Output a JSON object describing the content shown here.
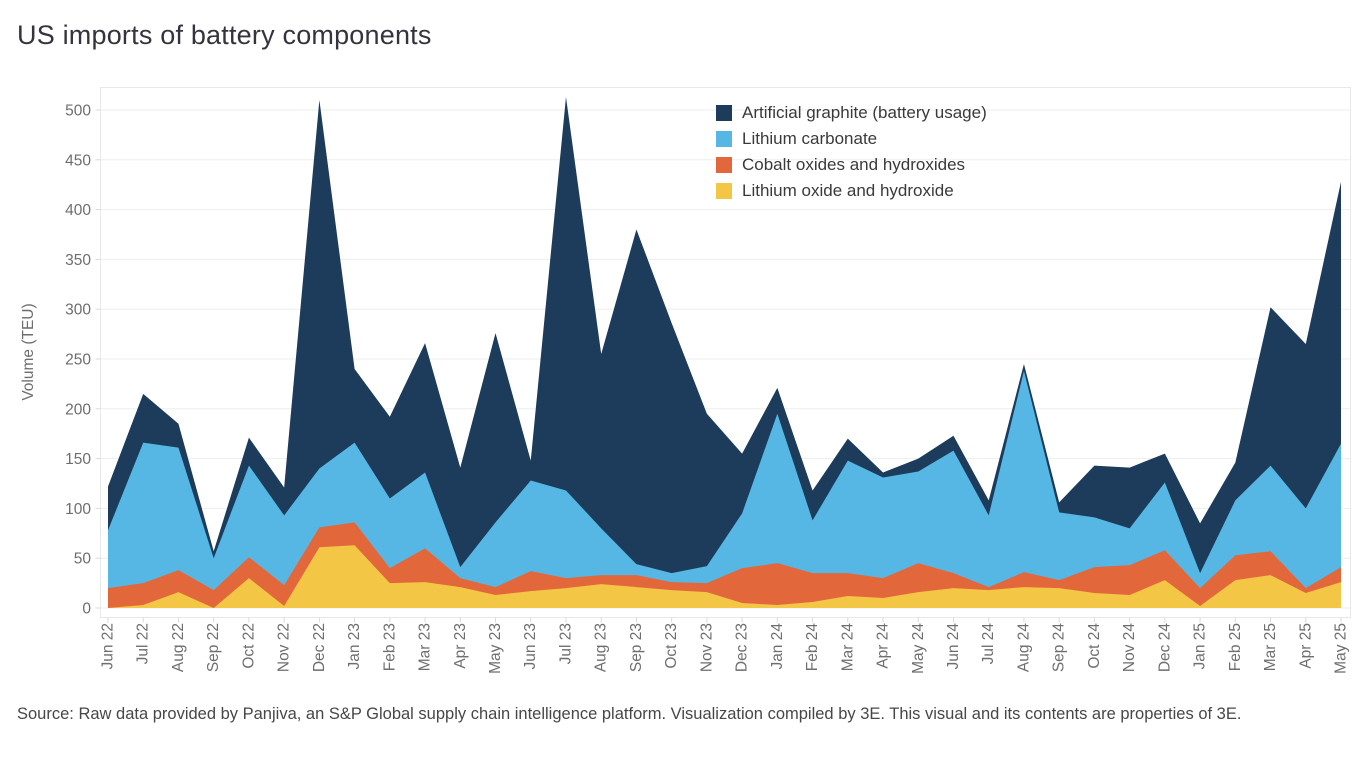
{
  "title": "US imports of battery components",
  "source_text": "Source: Raw data provided by Panjiva, an S&P Global supply chain intelligence platform. Visualization compiled by 3E. This visual and its contents are properties of 3E.",
  "colors": {
    "background": "#ffffff",
    "grid": "#ededed",
    "frame": "#e8e8e8",
    "tick": "#d9d9d9",
    "axis_text": "#6e6e6e",
    "title_text": "#34343e",
    "legend_text": "#3a3a3a",
    "source_text": "#47474a"
  },
  "chart_data": {
    "type": "area",
    "stacked": true,
    "title": "US imports of battery components",
    "xlabel": "",
    "ylabel": "Volume (TEU)",
    "ylim": [
      0,
      500
    ],
    "y_ticks": [
      0,
      50,
      100,
      150,
      200,
      250,
      300,
      350,
      400,
      450,
      500
    ],
    "grid": "horizontal",
    "legend_position": "top-right",
    "x": [
      "Jun 22",
      "Jul 22",
      "Aug 22",
      "Sep 22",
      "Oct 22",
      "Nov 22",
      "Dec 22",
      "Jan 23",
      "Feb 23",
      "Mar 23",
      "Apr 23",
      "May 23",
      "Jun 23",
      "Jul 23",
      "Aug 23",
      "Sep 23",
      "Oct 23",
      "Nov 23",
      "Dec 23",
      "Jan 24",
      "Feb 24",
      "Mar 24",
      "Apr 24",
      "May 24",
      "Jun 24",
      "Jul 24",
      "Aug 24",
      "Sep 24",
      "Oct 24",
      "Nov 24",
      "Dec 24",
      "Jan 25",
      "Feb 25",
      "Mar 25",
      "Apr 25",
      "May 25"
    ],
    "series": [
      {
        "name": "Lithium oxide and hydroxide",
        "color": "#f3c646",
        "values": [
          0,
          3,
          16,
          0,
          30,
          2,
          61,
          63,
          25,
          26,
          21,
          13,
          17,
          20,
          24,
          21,
          18,
          16,
          5,
          3,
          6,
          12,
          10,
          16,
          20,
          18,
          21,
          20,
          15,
          13,
          28,
          2,
          28,
          33,
          15,
          26
        ]
      },
      {
        "name": "Cobalt oxides and hydroxides",
        "color": "#e2683c",
        "values": [
          20,
          22,
          22,
          18,
          21,
          21,
          20,
          23,
          15,
          34,
          9,
          8,
          20,
          10,
          9,
          12,
          8,
          9,
          35,
          42,
          29,
          23,
          20,
          29,
          15,
          3,
          15,
          8,
          26,
          30,
          30,
          18,
          25,
          24,
          5,
          15
        ]
      },
      {
        "name": "Lithium carbonate",
        "color": "#56b7e4",
        "values": [
          58,
          141,
          123,
          32,
          92,
          70,
          59,
          80,
          70,
          76,
          11,
          65,
          91,
          88,
          47,
          11,
          9,
          17,
          55,
          150,
          53,
          113,
          101,
          92,
          123,
          72,
          202,
          68,
          50,
          37,
          68,
          15,
          55,
          86,
          80,
          124
        ]
      },
      {
        "name": "Artificial graphite (battery usage)",
        "color": "#1d3b5a",
        "values": [
          44,
          49,
          24,
          7,
          28,
          28,
          370,
          74,
          82,
          130,
          100,
          190,
          20,
          395,
          175,
          336,
          251,
          153,
          60,
          26,
          30,
          22,
          5,
          13,
          15,
          15,
          7,
          10,
          52,
          61,
          29,
          50,
          38,
          159,
          165,
          263
        ]
      }
    ]
  }
}
